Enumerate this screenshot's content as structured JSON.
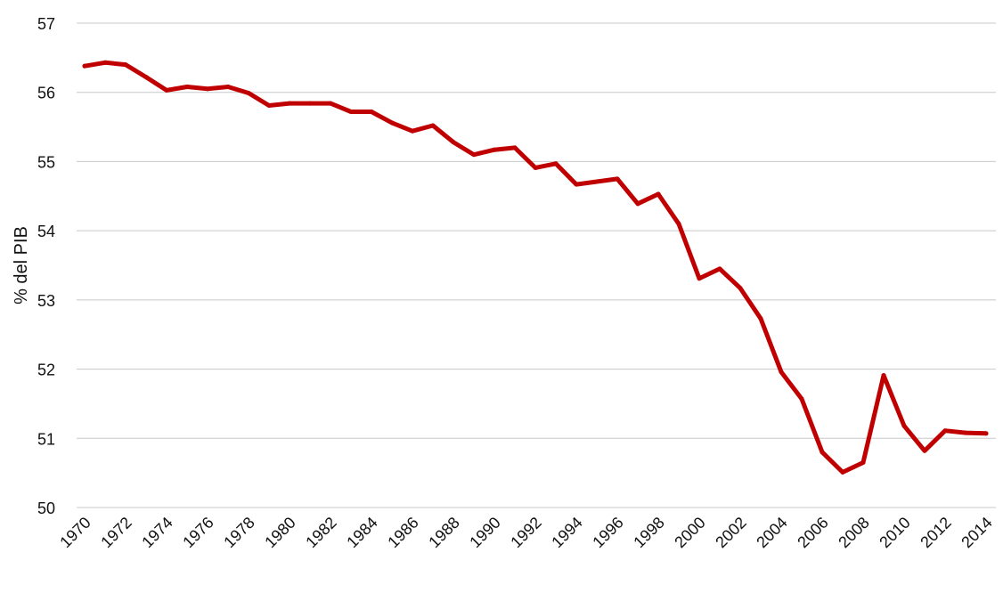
{
  "chart_data": {
    "type": "line",
    "title": "",
    "xlabel": "",
    "ylabel": "% del PIB",
    "ylim": [
      50,
      57
    ],
    "yticks": [
      50,
      51,
      52,
      53,
      54,
      55,
      56,
      57
    ],
    "x": [
      1970,
      1971,
      1972,
      1973,
      1974,
      1975,
      1976,
      1977,
      1978,
      1979,
      1980,
      1981,
      1982,
      1983,
      1984,
      1985,
      1986,
      1987,
      1988,
      1989,
      1990,
      1991,
      1992,
      1993,
      1994,
      1995,
      1996,
      1997,
      1998,
      1999,
      2000,
      2001,
      2002,
      2003,
      2004,
      2005,
      2006,
      2007,
      2008,
      2009,
      2010,
      2011,
      2012,
      2013,
      2014
    ],
    "xticks": [
      "1970",
      "1972",
      "1974",
      "1976",
      "1978",
      "1980",
      "1982",
      "1984",
      "1986",
      "1988",
      "1990",
      "1992",
      "1994",
      "1996",
      "1998",
      "2000",
      "2002",
      "2004",
      "2006",
      "2008",
      "2010",
      "2012",
      "2014"
    ],
    "grid": true,
    "series": [
      {
        "color": "#c00000",
        "values": [
          56.38,
          56.43,
          56.4,
          56.22,
          56.03,
          56.08,
          56.05,
          56.08,
          55.99,
          55.81,
          55.84,
          55.84,
          55.84,
          55.72,
          55.72,
          55.56,
          55.44,
          55.52,
          55.28,
          55.1,
          55.17,
          55.2,
          54.91,
          54.97,
          54.67,
          54.71,
          54.75,
          54.39,
          54.53,
          54.1,
          53.31,
          53.45,
          53.17,
          52.73,
          51.96,
          51.57,
          50.8,
          50.51,
          50.65,
          51.91,
          51.18,
          50.82,
          51.11,
          51.08,
          51.07
        ]
      }
    ]
  }
}
